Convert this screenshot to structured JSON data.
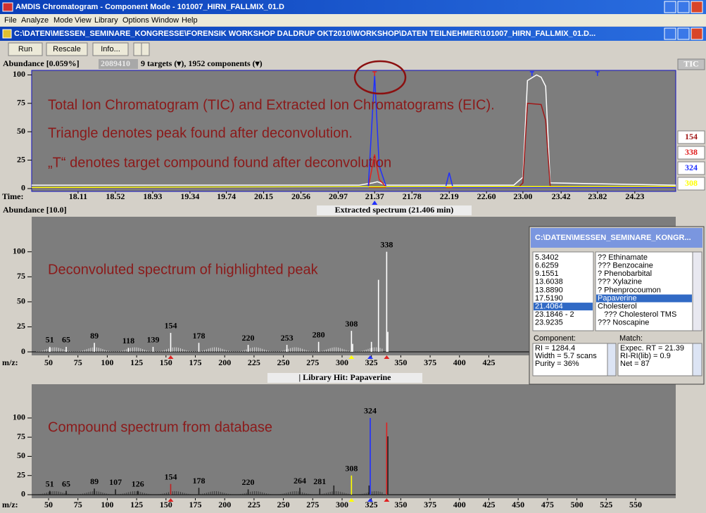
{
  "window": {
    "title": "AMDIS Chromatogram - Component Mode - 101007_HIRN_FALLMIX_01.D",
    "menu": [
      "File",
      "Analyze",
      "Mode",
      "View",
      "Library",
      "Options",
      "Window",
      "Help"
    ],
    "document_title": "C:\\DATEN\\MESSEN_SEMINARE_KONGRESSE\\FORENSIK WORKSHOP DALDRUP OKT2010\\WORKSHOP\\DATEN TEILNEHMER\\101007_HIRN_FALLMIX_01.D...",
    "toolbar": [
      "Run",
      "Rescale",
      "Info..."
    ]
  },
  "tic": {
    "abundance_label": "Abundance [0.059%]",
    "abundance_value": "2089410",
    "summary": "9 targets (▾), 1952 components (▾)",
    "x_label": "Time:",
    "xlim": [
      17.6,
      24.68
    ],
    "ylim": [
      -2.5,
      104
    ],
    "yticks": [
      0,
      25,
      50,
      75,
      100
    ],
    "xticks": [
      18.11,
      18.52,
      18.93,
      19.34,
      19.74,
      20.15,
      20.56,
      20.97,
      21.37,
      21.78,
      22.19,
      {
        "value": 22.6,
        "label": "22.60"
      },
      {
        "value": 23.0,
        "label": "23.00"
      },
      23.42,
      23.82,
      24.23
    ],
    "series": [
      {
        "name": "TIC",
        "color": "#ffffff",
        "x": [
          17.6,
          21.2,
          21.35,
          21.4,
          21.5,
          22.9,
          23.0,
          23.05,
          23.15,
          23.2,
          23.25,
          23.3,
          24.68
        ],
        "values": [
          3,
          3,
          5,
          6,
          3,
          3,
          10,
          95,
          100,
          98,
          90,
          5,
          3
        ]
      },
      {
        "name": "154",
        "color": "#a01818",
        "x": [
          17.6,
          22.95,
          23.0,
          23.05,
          23.2,
          23.25,
          23.3,
          24.68
        ],
        "values": [
          1,
          1,
          5,
          75,
          74,
          60,
          2,
          1
        ]
      },
      {
        "name": "338",
        "color": "#e02020",
        "x": [
          17.6,
          21.3,
          21.37,
          21.42,
          21.5,
          24.68
        ],
        "values": [
          1,
          1,
          30,
          8,
          1,
          1
        ]
      },
      {
        "name": "324",
        "color": "#2030ff",
        "x": [
          17.6,
          21.3,
          21.37,
          21.42,
          21.5,
          22.15,
          22.19,
          22.23,
          24.68
        ],
        "values": [
          1,
          1,
          100,
          20,
          1,
          1,
          14,
          1,
          1
        ]
      },
      {
        "name": "308",
        "color": "#ffff00",
        "x": [
          17.6,
          24.68
        ],
        "values": [
          1,
          2
        ]
      }
    ],
    "annotations": [
      "Total Ion Chromatogram (TIC) and Extracted Ion Chromatograms (EIC).",
      "Triangle denotes peak found after deconvolution.",
      "„T“ denotes target compound found after deconvolution"
    ]
  },
  "spectrum": {
    "header_left": "Abundance [10.0]",
    "title": "Extracted spectrum (21.406 min)",
    "x_label": "m/z:",
    "xlim": [
      35.6,
      584.2
    ],
    "ylim": [
      -3.5,
      135
    ],
    "yticks": [
      0,
      25,
      50,
      75,
      100
    ],
    "xticks": [
      50,
      75,
      100,
      125,
      150,
      175,
      200,
      225,
      250,
      275,
      300,
      325,
      350,
      375,
      400,
      425
    ],
    "peak_color": "#ffffff",
    "labeled_peaks": [
      {
        "mz": 51,
        "height": 5
      },
      {
        "mz": 65,
        "height": 5
      },
      {
        "mz": 89,
        "height": 9
      },
      {
        "mz": 118,
        "height": 4
      },
      {
        "mz": 139,
        "height": 5
      },
      {
        "mz": 154,
        "height": 19
      },
      {
        "mz": 178,
        "height": 9
      },
      {
        "mz": 220,
        "height": 7
      },
      {
        "mz": 253,
        "height": 7
      },
      {
        "mz": 280,
        "height": 10
      },
      {
        "mz": 308,
        "height": 21
      },
      {
        "mz": 338,
        "height": 100
      }
    ],
    "peaks": [
      {
        "mz": 331,
        "height": 72
      },
      {
        "mz": 325,
        "height": 10
      },
      {
        "mz": 309,
        "height": 8
      },
      {
        "mz": 339,
        "height": 20
      }
    ],
    "ion_markers": [
      {
        "mz": 154,
        "color": "#e02020"
      },
      {
        "mz": 308,
        "color": "#ffff00"
      },
      {
        "mz": 324,
        "color": "#2030ff"
      },
      {
        "mz": 338,
        "color": "#e02020"
      }
    ],
    "annotation": "Deconvoluted spectrum of highlighted peak"
  },
  "library": {
    "title": "| Library Hit: Papaverine",
    "x_label": "m/z:",
    "xlim": [
      35.6,
      584.2
    ],
    "ylim": [
      -4.6,
      144
    ],
    "yticks": [
      0,
      25,
      50,
      75,
      100
    ],
    "xticks": [
      50,
      75,
      100,
      125,
      150,
      175,
      200,
      225,
      250,
      275,
      300,
      325,
      350,
      375,
      400,
      425,
      450,
      475,
      500,
      525,
      550
    ],
    "peak_color": "#202020",
    "labeled_peaks": [
      {
        "mz": 51,
        "height": 5
      },
      {
        "mz": 65,
        "height": 5
      },
      {
        "mz": 89,
        "height": 8
      },
      {
        "mz": 107,
        "height": 7
      },
      {
        "mz": 126,
        "height": 5
      },
      {
        "mz": 154,
        "height": 14,
        "color": "#c02020"
      },
      {
        "mz": 178,
        "height": 9
      },
      {
        "mz": 220,
        "height": 7
      },
      {
        "mz": 264,
        "height": 9
      },
      {
        "mz": 281,
        "height": 8
      },
      {
        "mz": 308,
        "height": 25,
        "color": "#ffff00"
      },
      {
        "mz": 324,
        "height": 100,
        "color": "#2030ff"
      }
    ],
    "peaks": [
      {
        "mz": 338,
        "height": 94,
        "color": "#e02020"
      },
      {
        "mz": 339,
        "height": 76
      },
      {
        "mz": 323,
        "height": 12
      },
      {
        "mz": 293,
        "height": 12
      }
    ],
    "ion_markers": [
      {
        "mz": 154,
        "color": "#e02020"
      },
      {
        "mz": 308,
        "color": "#ffff00"
      },
      {
        "mz": 324,
        "color": "#2030ff"
      },
      {
        "mz": 338,
        "color": "#e02020"
      }
    ],
    "annotation": "Compound spectrum from database"
  },
  "component_window": {
    "title": "C:\\DATEN\\MESSEN_SEMINARE_KONGR...",
    "rows": [
      [
        "5.3402",
        "?? Ethinamate"
      ],
      [
        "6.6259",
        "??? Benzocaine"
      ],
      [
        "9.1551",
        "? Phenobarbital"
      ],
      [
        "13.6038",
        "??? Xylazine"
      ],
      [
        "13.8890",
        "? Phenprocoumon"
      ],
      [
        "17.5190",
        "Papaverine"
      ],
      [
        "21.4064",
        "Cholesterol"
      ],
      [
        "23.1846 - 2",
        "   ??? Cholesterol TMS"
      ],
      [
        "23.9235",
        "??? Noscapine"
      ]
    ],
    "selected_time": 6,
    "selected_name": 5,
    "component_label": "Component:",
    "match_label": "Match:",
    "component": [
      "RI = 1284.4",
      "Width = 5.7 scans",
      "Purity = 36%"
    ],
    "match": [
      "Expec. RT = 21.39",
      "RI-RI(lib) = 0.9",
      "Net = 87"
    ]
  }
}
